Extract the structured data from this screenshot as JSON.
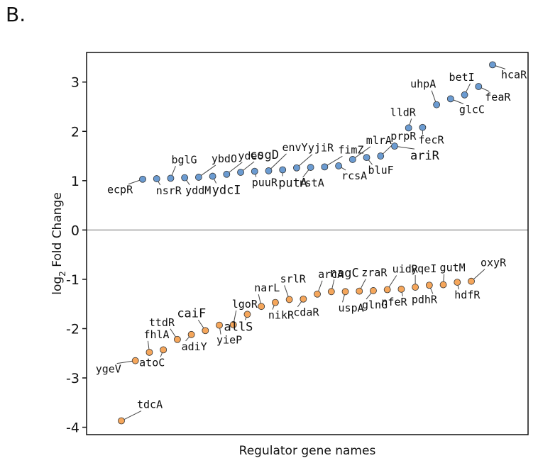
{
  "panel_label": "B.",
  "chart_data": {
    "type": "scatter",
    "title": "",
    "xlabel": "Regulator gene names",
    "ylabel_main": "log",
    "ylabel_sub": "2",
    "ylabel_rest": " Fold Change",
    "ylim": [
      -4.15,
      3.6
    ],
    "yticks": [
      3,
      2,
      1,
      0,
      -1,
      -2,
      -3,
      -4
    ],
    "ytick_labels": [
      "3",
      "2",
      "1",
      "0",
      "-1",
      "-2",
      "-3",
      "-4"
    ],
    "zero_line": true,
    "grid": false,
    "legend": "none",
    "colors": {
      "up": "#6b9bd1",
      "down": "#f5a65b",
      "point_edge": "#333333",
      "zero_line": "#8c8c8c"
    },
    "up": [
      {
        "name": "ecpR",
        "y": 1.03
      },
      {
        "name": "nsrR",
        "y": 1.04
      },
      {
        "name": "bglG",
        "y": 1.05
      },
      {
        "name": "yddM",
        "y": 1.06
      },
      {
        "name": "ybdO",
        "y": 1.07
      },
      {
        "name": "ydcI",
        "y": 1.09
      },
      {
        "name": "ydeO",
        "y": 1.13
      },
      {
        "name": "csgD",
        "y": 1.17
      },
      {
        "name": "puuR",
        "y": 1.19
      },
      {
        "name": "envY",
        "y": 1.2
      },
      {
        "name": "putA",
        "y": 1.22
      },
      {
        "name": "yjiR",
        "y": 1.26
      },
      {
        "name": "rstA",
        "y": 1.27
      },
      {
        "name": "fimZ",
        "y": 1.28
      },
      {
        "name": "rcsA",
        "y": 1.3
      },
      {
        "name": "mlrA",
        "y": 1.43
      },
      {
        "name": "bluF",
        "y": 1.47
      },
      {
        "name": "prpR",
        "y": 1.5
      },
      {
        "name": "ariR",
        "y": 1.7
      },
      {
        "name": "lldR",
        "y": 2.07
      },
      {
        "name": "fecR",
        "y": 2.08
      },
      {
        "name": "uhpA",
        "y": 2.54
      },
      {
        "name": "glcC",
        "y": 2.66
      },
      {
        "name": "betI",
        "y": 2.74
      },
      {
        "name": "feaR",
        "y": 2.91
      },
      {
        "name": "hcaR",
        "y": 3.35
      }
    ],
    "down": [
      {
        "name": "tdcA",
        "y": -3.87
      },
      {
        "name": "ygeV",
        "y": -2.65
      },
      {
        "name": "fhlA",
        "y": -2.48
      },
      {
        "name": "atoC",
        "y": -2.43
      },
      {
        "name": "ttdR",
        "y": -2.22
      },
      {
        "name": "adiY",
        "y": -2.12
      },
      {
        "name": "caiF",
        "y": -2.04
      },
      {
        "name": "yieP",
        "y": -1.93
      },
      {
        "name": "lgoR",
        "y": -1.92
      },
      {
        "name": "allS",
        "y": -1.71
      },
      {
        "name": "narL",
        "y": -1.55
      },
      {
        "name": "nikR",
        "y": -1.47
      },
      {
        "name": "srlR",
        "y": -1.41
      },
      {
        "name": "cdaR",
        "y": -1.4
      },
      {
        "name": "arcA",
        "y": -1.3
      },
      {
        "name": "nagC",
        "y": -1.25
      },
      {
        "name": "uspA",
        "y": -1.25
      },
      {
        "name": "zraR",
        "y": -1.24
      },
      {
        "name": "glnG",
        "y": -1.23
      },
      {
        "name": "uidR",
        "y": -1.21
      },
      {
        "name": "nfeR",
        "y": -1.2
      },
      {
        "name": "yqeI",
        "y": -1.16
      },
      {
        "name": "pdhR",
        "y": -1.12
      },
      {
        "name": "gutM",
        "y": -1.11
      },
      {
        "name": "hdfR",
        "y": -1.06
      },
      {
        "name": "oxyR",
        "y": -1.04
      }
    ]
  }
}
